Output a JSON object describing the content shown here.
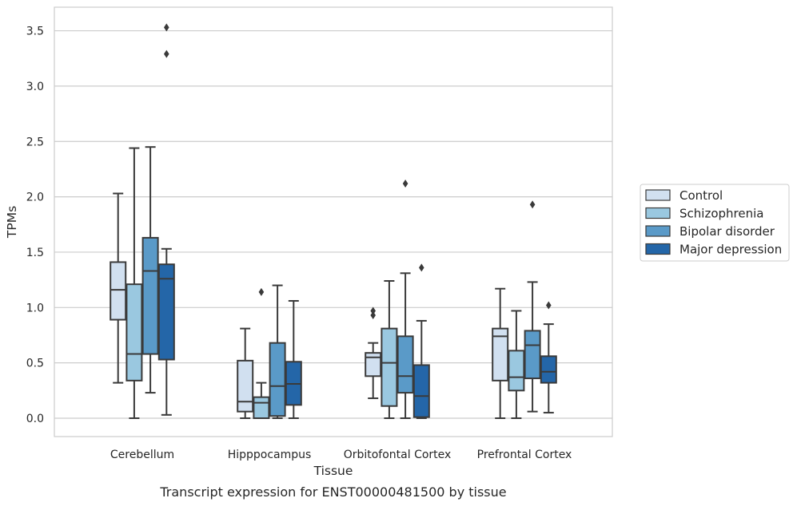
{
  "chart_data": {
    "type": "box",
    "xlabel": "Tissue",
    "ylabel": "TPMs",
    "caption": "Transcript expression for ENST00000481500 by tissue",
    "categories": [
      "Cerebellum",
      "Hipppocampus",
      "Orbitofontal Cortex",
      "Prefrontal Cortex"
    ],
    "ylim": [
      -0.17,
      3.72
    ],
    "yticks": [
      "0.0",
      "0.5",
      "1.0",
      "1.5",
      "2.0",
      "2.5",
      "3.0",
      "3.5"
    ],
    "grid": "horizontal",
    "legend_position": "right",
    "series": [
      {
        "name": "Control",
        "color": "#d1e0f0",
        "boxes": [
          {
            "whislo": 0.32,
            "q1": 0.89,
            "med": 1.16,
            "q3": 1.41,
            "whishi": 2.03,
            "fliers": []
          },
          {
            "whislo": 0.0,
            "q1": 0.06,
            "med": 0.15,
            "q3": 0.52,
            "whishi": 0.81,
            "fliers": []
          },
          {
            "whislo": 0.18,
            "q1": 0.38,
            "med": 0.55,
            "q3": 0.59,
            "whishi": 0.68,
            "fliers": [
              0.93,
              0.97
            ]
          },
          {
            "whislo": 0.0,
            "q1": 0.34,
            "med": 0.74,
            "q3": 0.81,
            "whishi": 1.17,
            "fliers": []
          }
        ]
      },
      {
        "name": "Schizophrenia",
        "color": "#9ac8e0",
        "boxes": [
          {
            "whislo": 0.0,
            "q1": 0.34,
            "med": 0.58,
            "q3": 1.21,
            "whishi": 2.44,
            "fliers": []
          },
          {
            "whislo": 0.0,
            "q1": 0.0,
            "med": 0.14,
            "q3": 0.19,
            "whishi": 0.32,
            "fliers": [
              1.14
            ]
          },
          {
            "whislo": 0.0,
            "q1": 0.11,
            "med": 0.5,
            "q3": 0.81,
            "whishi": 1.24,
            "fliers": []
          },
          {
            "whislo": 0.0,
            "q1": 0.25,
            "med": 0.37,
            "q3": 0.61,
            "whishi": 0.97,
            "fliers": []
          }
        ]
      },
      {
        "name": "Bipolar disorder",
        "color": "#5a9ac8",
        "boxes": [
          {
            "whislo": 0.23,
            "q1": 0.58,
            "med": 1.33,
            "q3": 1.63,
            "whishi": 2.45,
            "fliers": []
          },
          {
            "whislo": 0.0,
            "q1": 0.02,
            "med": 0.29,
            "q3": 0.68,
            "whishi": 1.2,
            "fliers": []
          },
          {
            "whislo": 0.0,
            "q1": 0.23,
            "med": 0.38,
            "q3": 0.74,
            "whishi": 1.31,
            "fliers": [
              2.12
            ]
          },
          {
            "whislo": 0.06,
            "q1": 0.36,
            "med": 0.66,
            "q3": 0.79,
            "whishi": 1.23,
            "fliers": [
              1.93
            ]
          }
        ]
      },
      {
        "name": "Major depression",
        "color": "#2466a8",
        "boxes": [
          {
            "whislo": 0.03,
            "q1": 0.53,
            "med": 1.26,
            "q3": 1.39,
            "whishi": 1.53,
            "fliers": [
              3.29,
              3.53
            ]
          },
          {
            "whislo": 0.0,
            "q1": 0.12,
            "med": 0.31,
            "q3": 0.51,
            "whishi": 1.06,
            "fliers": []
          },
          {
            "whislo": 0.0,
            "q1": 0.01,
            "med": 0.2,
            "q3": 0.48,
            "whishi": 0.88,
            "fliers": [
              1.36
            ]
          },
          {
            "whislo": 0.05,
            "q1": 0.32,
            "med": 0.42,
            "q3": 0.56,
            "whishi": 0.85,
            "fliers": [
              1.02
            ]
          }
        ]
      }
    ]
  }
}
